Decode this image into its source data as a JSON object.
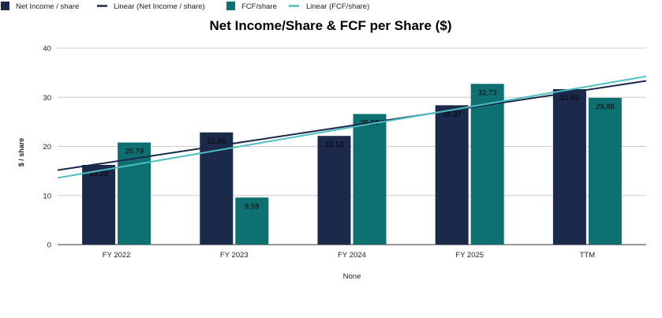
{
  "chart_data": {
    "type": "bar",
    "title": "Net Income/Share & FCF per Share ($)",
    "xlabel": "None",
    "ylabel": "$ / share",
    "categories": [
      "FY 2022",
      "FY 2023",
      "FY 2024",
      "FY 2025",
      "TTM"
    ],
    "ylim": [
      0,
      40
    ],
    "yticks": [
      "0",
      "10",
      "20",
      "30",
      "40"
    ],
    "grid": true,
    "legend_position": "top-left",
    "series": [
      {
        "name": "Net Income / share",
        "values": [
          16.23,
          22.85,
          22.13,
          28.37,
          31.65
        ],
        "labels": [
          "16,23",
          "22,85",
          "22,13",
          "28,37",
          "31,65"
        ],
        "color": "#1b2a4a"
      },
      {
        "name": "FCF/share",
        "values": [
          20.79,
          9.59,
          26.59,
          32.73,
          29.88
        ],
        "labels": [
          "20,79",
          "9,59",
          "26,59",
          "32,73",
          "29,88"
        ],
        "color": "#0e7070"
      }
    ],
    "trendlines": [
      {
        "name": "Linear (Net Income / share)",
        "of": "Net Income / share",
        "type": "linear",
        "color": "#1b2a4a"
      },
      {
        "name": "Linear (FCF/share)",
        "of": "FCF/share",
        "type": "linear",
        "color": "#4bbfc4"
      }
    ]
  }
}
